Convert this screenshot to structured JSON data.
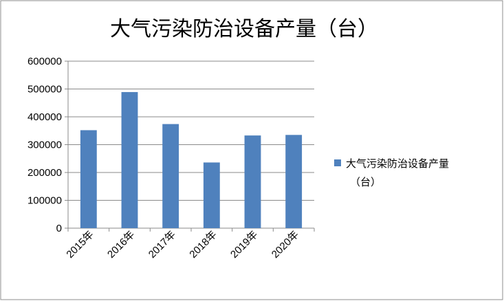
{
  "chart_data": {
    "type": "bar",
    "title": "大气污染防治设备产量（台）",
    "categories": [
      "2015年",
      "2016年",
      "2017年",
      "2018年",
      "2019年",
      "2020年"
    ],
    "series": [
      {
        "name": "大气污染防治设备产量（台）",
        "values": [
          352000,
          489000,
          374000,
          236000,
          333000,
          335000
        ],
        "color": "#4F81BD"
      }
    ],
    "yticks": [
      "0",
      "100000",
      "200000",
      "300000",
      "400000",
      "500000",
      "600000"
    ],
    "ylim": [
      0,
      600000
    ],
    "grid": true,
    "legend_position": "right",
    "legend_lines": [
      "大气污染防治设备产量",
      "（台）"
    ]
  }
}
